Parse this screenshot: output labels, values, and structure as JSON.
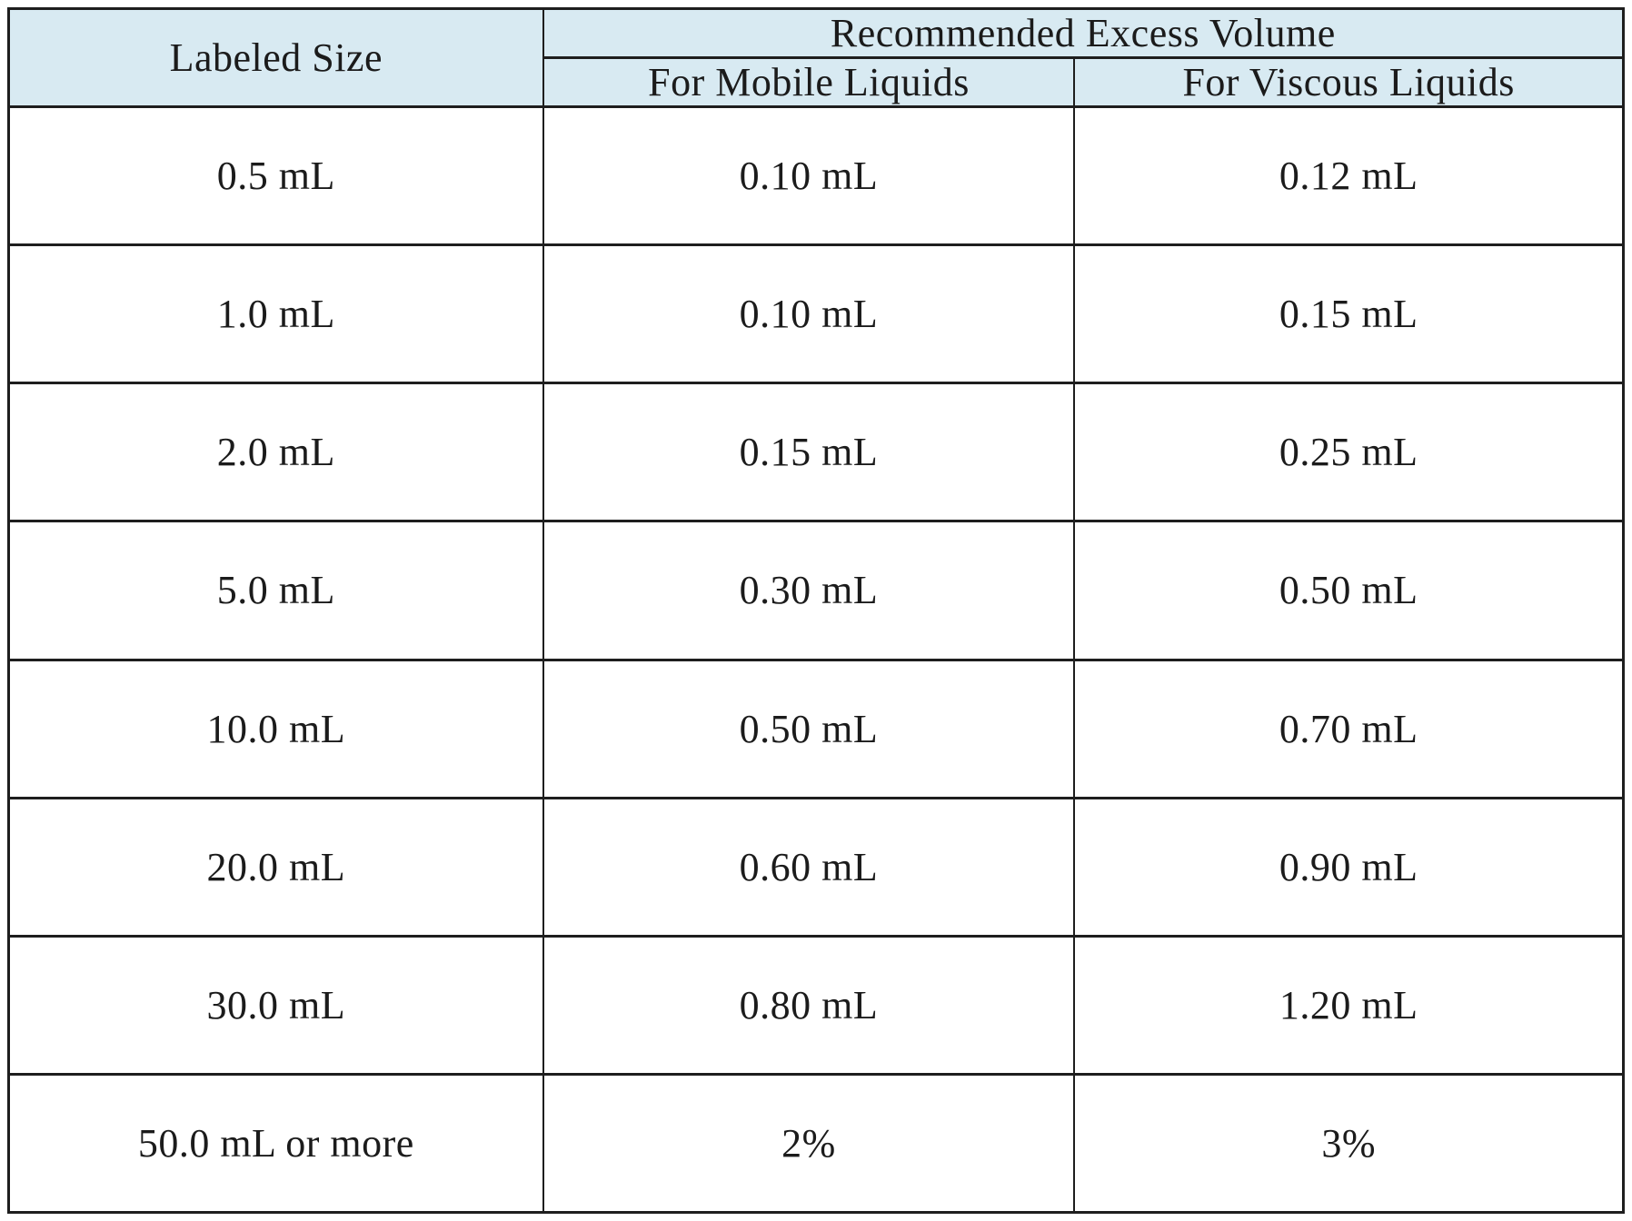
{
  "table": {
    "header": {
      "labeled_size": "Labeled Size",
      "group_title": "Recommended Excess Volume",
      "col_mobile": "For Mobile Liquids",
      "col_viscous": "For Viscous Liquids"
    },
    "rows": [
      {
        "labeled_size": "0.5 mL",
        "mobile": "0.10 mL",
        "viscous": "0.12 mL"
      },
      {
        "labeled_size": "1.0 mL",
        "mobile": "0.10 mL",
        "viscous": "0.15 mL"
      },
      {
        "labeled_size": "2.0 mL",
        "mobile": "0.15 mL",
        "viscous": "0.25 mL"
      },
      {
        "labeled_size": "5.0 mL",
        "mobile": "0.30 mL",
        "viscous": "0.50 mL"
      },
      {
        "labeled_size": "10.0 mL",
        "mobile": "0.50 mL",
        "viscous": "0.70 mL"
      },
      {
        "labeled_size": "20.0 mL",
        "mobile": "0.60 mL",
        "viscous": "0.90 mL"
      },
      {
        "labeled_size": "30.0 mL",
        "mobile": "0.80 mL",
        "viscous": "1.20 mL"
      },
      {
        "labeled_size": "50.0 mL or more",
        "mobile": "2%",
        "viscous": "3%"
      }
    ]
  },
  "colors": {
    "header_background": "#d8eaf2",
    "border": "#1e1e1e",
    "text": "#1b1b1b",
    "page_background": "#ffffff"
  }
}
